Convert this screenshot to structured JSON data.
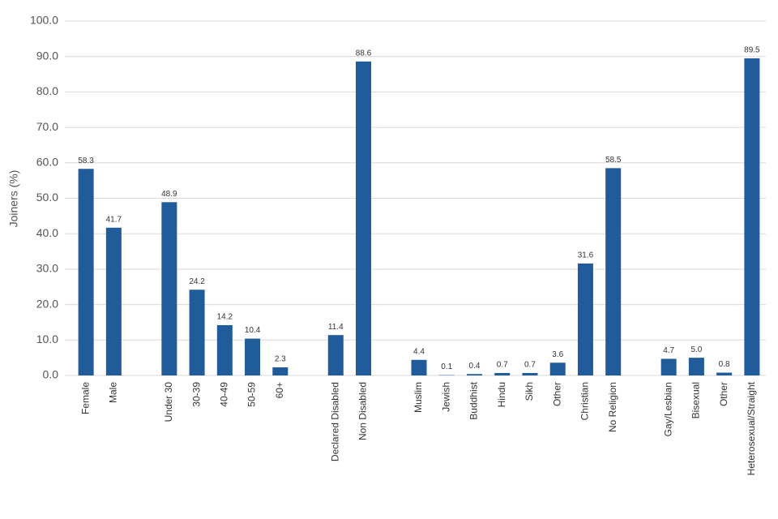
{
  "chart_data": {
    "type": "bar",
    "y_label": "Joiners (%)",
    "categories": [
      "Female",
      "Male",
      null,
      "Under 30",
      "30-39",
      "40-49",
      "50-59",
      "60+",
      null,
      "Declared Disabled",
      "Non Disabled",
      null,
      "Muslim",
      "Jewish",
      "Buddhist",
      "Hindu",
      "Sikh",
      "Other",
      "Christian",
      "No Religion",
      null,
      "Gay/Lesbian",
      "Bisexual",
      "Other",
      "Heterosexual/Straight"
    ],
    "values": [
      58.3,
      41.7,
      null,
      48.9,
      24.2,
      14.2,
      10.4,
      2.3,
      null,
      11.4,
      88.6,
      null,
      4.4,
      0.1,
      0.4,
      0.7,
      0.7,
      3.6,
      31.6,
      58.5,
      null,
      4.7,
      5.0,
      0.8,
      89.5
    ],
    "value_labels": [
      "58.3",
      "41.7",
      null,
      "48.9",
      "24.2",
      "14.2",
      "10.4",
      "2.3",
      null,
      "11.4",
      "88.6",
      null,
      "4.4",
      "0.1",
      "0.4",
      "0.7",
      "0.7",
      "3.6",
      "31.6",
      "58.5",
      null,
      "4.7",
      "5.0",
      "0.8",
      "89.5"
    ],
    "color": "#1f5c99",
    "ylim": [
      0,
      100
    ],
    "yticks": [
      {
        "value": 0,
        "label": "0.0"
      },
      {
        "value": 10,
        "label": "10.0"
      },
      {
        "value": 20,
        "label": "20.0"
      },
      {
        "value": 30,
        "label": "30.0"
      },
      {
        "value": 40,
        "label": "40.0"
      },
      {
        "value": 50,
        "label": "50.0"
      },
      {
        "value": 60,
        "label": "60.0"
      },
      {
        "value": 70,
        "label": "70.0"
      },
      {
        "value": 80,
        "label": "80.0"
      },
      {
        "value": 90,
        "label": "90.0"
      },
      {
        "value": 100,
        "label": "100.0"
      }
    ],
    "grid": true
  }
}
